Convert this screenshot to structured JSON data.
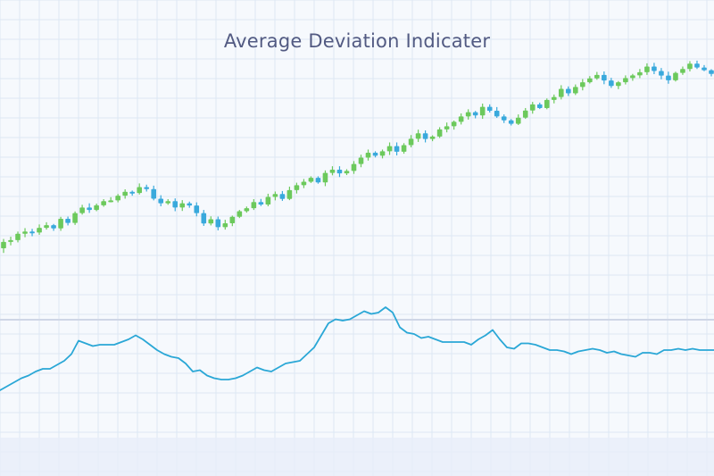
{
  "title": "Average Deviation Indicater",
  "colors": {
    "background": "#f6f9fd",
    "grid": "#dde8f4",
    "up": "#6cc95c",
    "down": "#39a9dc",
    "indicator": "#2aa7d6",
    "divider": "#cfd6e6",
    "title": "#525a82"
  },
  "chart_data": [
    {
      "type": "candlestick",
      "title": "Average Deviation Indicater",
      "grid": true,
      "legend": "none",
      "ylim": [
        0,
        100
      ],
      "candles": [
        [
          20.0,
          22.6,
          18.1,
          23.8
        ],
        [
          22.6,
          23.3,
          21.2,
          24.7
        ],
        [
          23.3,
          25.9,
          22.4,
          26.8
        ],
        [
          25.9,
          26.8,
          24.5,
          28.2
        ],
        [
          26.8,
          26.4,
          24.9,
          27.9
        ],
        [
          26.4,
          28.3,
          25.5,
          29.7
        ],
        [
          28.3,
          29.4,
          27.6,
          30.6
        ],
        [
          29.4,
          28.1,
          27.1,
          29.9
        ],
        [
          28.1,
          32.0,
          27.1,
          32.8
        ],
        [
          32.0,
          30.3,
          29.3,
          32.9
        ],
        [
          30.3,
          34.3,
          29.5,
          35.0
        ],
        [
          34.3,
          36.6,
          33.7,
          37.7
        ],
        [
          36.6,
          35.6,
          34.4,
          38.3
        ],
        [
          35.6,
          37.5,
          35.1,
          38.2
        ],
        [
          37.5,
          39.2,
          36.9,
          40.0
        ],
        [
          39.2,
          39.5,
          38.7,
          40.8
        ],
        [
          39.5,
          41.4,
          38.7,
          42.1
        ],
        [
          41.4,
          43.0,
          40.2,
          44.0
        ],
        [
          43.0,
          42.5,
          41.4,
          43.5
        ],
        [
          42.5,
          44.9,
          41.9,
          46.4
        ],
        [
          44.9,
          44.1,
          43.1,
          45.9
        ],
        [
          44.1,
          40.2,
          39.5,
          45.5
        ],
        [
          40.2,
          38.3,
          37.1,
          41.6
        ],
        [
          38.3,
          39.2,
          37.7,
          40.0
        ],
        [
          39.2,
          36.6,
          35.1,
          40.3
        ],
        [
          36.6,
          38.3,
          35.2,
          39.6
        ],
        [
          38.3,
          37.4,
          36.5,
          39.0
        ],
        [
          37.4,
          34.3,
          33.0,
          38.7
        ],
        [
          34.3,
          30.1,
          29.1,
          35.6
        ],
        [
          30.1,
          31.8,
          29.3,
          33.0
        ],
        [
          31.8,
          28.6,
          27.3,
          32.9
        ],
        [
          28.6,
          30.2,
          27.6,
          31.6
        ],
        [
          30.2,
          32.8,
          29.0,
          33.3
        ],
        [
          32.8,
          35.1,
          32.3,
          35.6
        ],
        [
          35.1,
          36.3,
          34.5,
          37.0
        ],
        [
          36.3,
          38.8,
          35.6,
          40.0
        ],
        [
          38.8,
          37.8,
          37.2,
          40.1
        ],
        [
          37.8,
          40.9,
          37.1,
          42.2
        ],
        [
          40.9,
          42.1,
          39.5,
          43.1
        ],
        [
          42.1,
          40.1,
          39.3,
          43.3
        ],
        [
          40.1,
          43.7,
          39.6,
          45.1
        ],
        [
          43.7,
          45.7,
          42.3,
          46.7
        ],
        [
          45.7,
          47.1,
          44.5,
          48.2
        ],
        [
          47.1,
          48.7,
          46.6,
          49.3
        ],
        [
          48.7,
          46.8,
          46.3,
          49.3
        ],
        [
          46.8,
          50.7,
          45.3,
          51.7
        ],
        [
          50.7,
          52.0,
          49.7,
          53.4
        ],
        [
          52.0,
          50.5,
          49.0,
          53.4
        ],
        [
          50.5,
          51.5,
          49.8,
          52.2
        ],
        [
          51.5,
          54.3,
          50.3,
          55.5
        ],
        [
          54.3,
          56.9,
          53.0,
          58.1
        ],
        [
          56.9,
          58.9,
          55.7,
          60.2
        ],
        [
          58.9,
          57.7,
          57.0,
          59.5
        ],
        [
          57.7,
          59.5,
          56.6,
          60.2
        ],
        [
          59.5,
          61.6,
          58.0,
          63.1
        ],
        [
          61.6,
          59.3,
          57.8,
          63.1
        ],
        [
          59.3,
          62.0,
          58.5,
          62.8
        ],
        [
          62.0,
          64.6,
          61.1,
          66.1
        ],
        [
          64.6,
          66.8,
          63.3,
          68.3
        ],
        [
          66.8,
          64.5,
          63.1,
          68.0
        ],
        [
          64.5,
          65.5,
          63.6,
          66.0
        ],
        [
          65.5,
          68.4,
          64.9,
          69.3
        ],
        [
          68.4,
          69.7,
          67.2,
          71.2
        ],
        [
          69.7,
          71.5,
          68.3,
          72.0
        ],
        [
          71.5,
          73.7,
          70.4,
          74.9
        ],
        [
          73.7,
          75.4,
          72.4,
          76.6
        ],
        [
          75.4,
          74.1,
          72.9,
          75.9
        ],
        [
          74.1,
          77.6,
          72.7,
          78.9
        ],
        [
          77.6,
          76.0,
          75.3,
          78.6
        ],
        [
          76.0,
          73.7,
          73.1,
          77.5
        ],
        [
          73.7,
          72.1,
          71.0,
          74.5
        ],
        [
          72.1,
          70.7,
          70.0,
          72.6
        ],
        [
          70.7,
          73.2,
          70.2,
          74.5
        ],
        [
          73.2,
          76.1,
          72.7,
          77.1
        ],
        [
          76.1,
          78.6,
          74.8,
          79.6
        ],
        [
          78.6,
          77.1,
          76.7,
          79.3
        ],
        [
          77.1,
          80.4,
          76.6,
          81.0
        ],
        [
          80.4,
          81.6,
          79.0,
          82.6
        ],
        [
          81.6,
          84.9,
          80.6,
          86.4
        ],
        [
          84.9,
          83.1,
          82.0,
          85.9
        ],
        [
          83.1,
          85.7,
          82.4,
          86.7
        ],
        [
          85.7,
          87.6,
          84.3,
          88.9
        ],
        [
          87.6,
          89.2,
          87.1,
          90.1
        ],
        [
          89.2,
          90.6,
          88.6,
          91.8
        ],
        [
          90.6,
          88.3,
          86.8,
          92.0
        ],
        [
          88.3,
          86.1,
          85.3,
          89.4
        ],
        [
          86.1,
          87.6,
          84.8,
          88.1
        ],
        [
          87.6,
          89.3,
          86.7,
          90.4
        ],
        [
          89.3,
          90.4,
          88.2,
          91.0
        ],
        [
          90.4,
          91.7,
          89.3,
          93.0
        ],
        [
          91.7,
          94.0,
          90.6,
          95.3
        ],
        [
          94.0,
          92.2,
          90.9,
          95.5
        ],
        [
          92.2,
          90.3,
          88.8,
          93.4
        ],
        [
          90.3,
          88.4,
          87.0,
          91.9
        ],
        [
          88.4,
          91.4,
          87.9,
          91.9
        ],
        [
          91.4,
          93.0,
          90.6,
          94.0
        ],
        [
          93.0,
          95.2,
          92.0,
          96.2
        ],
        [
          95.2,
          93.6,
          93.0,
          96.4
        ],
        [
          93.6,
          92.5,
          92.1,
          94.6
        ],
        [
          92.5,
          91.0,
          90.0,
          92.9
        ]
      ]
    },
    {
      "type": "line",
      "ylim": [
        0,
        100
      ],
      "grid": true,
      "x": [
        0,
        1,
        2,
        3,
        4,
        5,
        6,
        7,
        8,
        9,
        10,
        11,
        12,
        13,
        14,
        15,
        16,
        17,
        18,
        19,
        20,
        21,
        22,
        23,
        24,
        25,
        26,
        27,
        28,
        29,
        30,
        31,
        32,
        33,
        34,
        35,
        36,
        37,
        38,
        39,
        40,
        41,
        42,
        43,
        44,
        45,
        46,
        47,
        48,
        49,
        50,
        51,
        52,
        53,
        54,
        55,
        56,
        57,
        58,
        59,
        60,
        61,
        62,
        63,
        64,
        65,
        66,
        67,
        68,
        69,
        70,
        71,
        72,
        73,
        74,
        75,
        76,
        77,
        78,
        79,
        80,
        81,
        82,
        83,
        84,
        85,
        86,
        87,
        88,
        89,
        90,
        91,
        92,
        93,
        94,
        95,
        96,
        97,
        98,
        99,
        100
      ],
      "values": [
        10,
        13,
        16,
        19,
        21,
        24,
        26,
        26,
        29,
        32,
        37,
        47,
        45,
        43,
        44,
        44,
        44,
        46,
        48,
        51,
        48,
        44,
        40,
        37,
        35,
        34,
        30,
        24,
        25,
        21,
        19,
        18,
        18,
        19,
        21,
        24,
        27,
        25,
        24,
        27,
        30,
        31,
        32,
        37,
        42,
        51,
        60,
        63,
        62,
        63,
        66,
        69,
        67,
        68,
        72,
        68,
        57,
        53,
        52,
        49,
        50,
        48,
        46,
        46,
        46,
        46,
        44,
        48,
        51,
        55,
        48,
        42,
        41,
        45,
        45,
        44,
        42,
        40,
        40,
        39,
        37,
        39,
        40,
        41,
        40,
        38,
        39,
        37,
        36,
        35,
        38,
        38,
        37,
        40,
        40,
        41,
        40,
        41,
        40,
        40,
        40
      ]
    }
  ]
}
